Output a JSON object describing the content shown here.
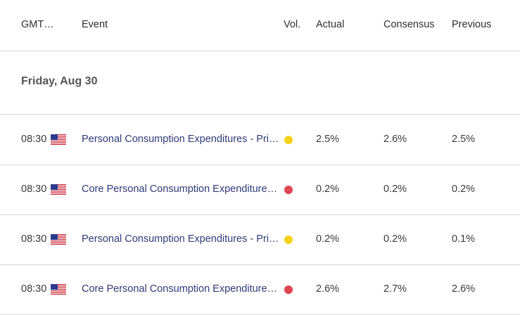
{
  "header": {
    "time_label": "GMT…",
    "event_label": "Event",
    "vol_label": "Vol.",
    "actual_label": "Actual",
    "consensus_label": "Consensus",
    "previous_label": "Previous"
  },
  "date_group": "Friday, Aug 30",
  "colors": {
    "vol_medium": "#f7d21a",
    "vol_high": "#e04552",
    "event_link": "#2f3a78"
  },
  "rows": [
    {
      "time": "08:30",
      "country_icon": "us-flag-icon",
      "event": "Personal Consumption Expenditures - Price Index (YoY)",
      "vol": "medium",
      "actual": "2.5%",
      "consensus": "2.6%",
      "previous": "2.5%"
    },
    {
      "time": "08:30",
      "country_icon": "us-flag-icon",
      "event": "Core Personal Consumption Expenditures - Price Index (YoY)",
      "vol": "high",
      "actual": "0.2%",
      "consensus": "0.2%",
      "previous": "0.2%"
    },
    {
      "time": "08:30",
      "country_icon": "us-flag-icon",
      "event": "Personal Consumption Expenditures - Price Index (MoM)",
      "vol": "medium",
      "actual": "0.2%",
      "consensus": "0.2%",
      "previous": "0.1%"
    },
    {
      "time": "08:30",
      "country_icon": "us-flag-icon",
      "event": "Core Personal Consumption Expenditures - Price Index (MoM)",
      "vol": "high",
      "actual": "2.6%",
      "consensus": "2.7%",
      "previous": "2.6%"
    }
  ]
}
